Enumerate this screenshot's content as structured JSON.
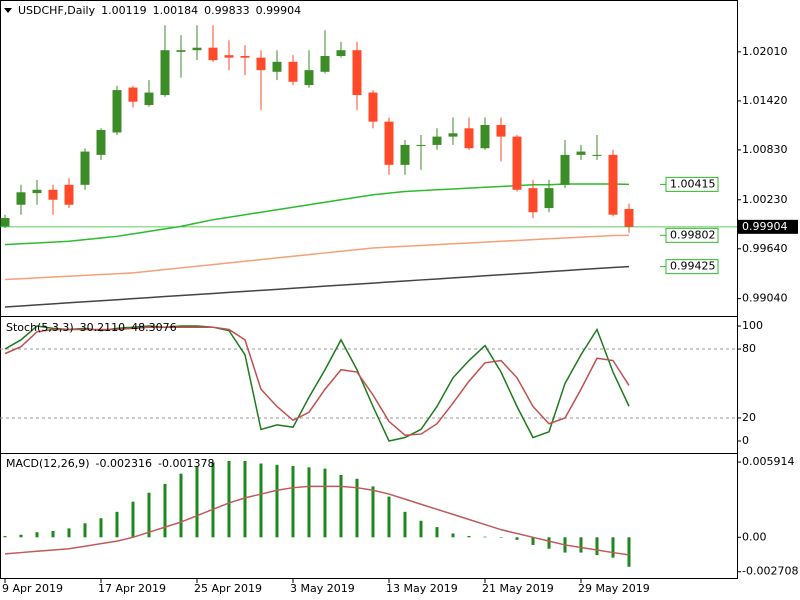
{
  "chart_data": [
    {
      "type": "candlestick",
      "title": "USDCHF,Daily",
      "categories": [
        "9 Apr 2019",
        null,
        null,
        null,
        null,
        null,
        "17 Apr 2019",
        null,
        null,
        null,
        null,
        null,
        "25 Apr 2019",
        null,
        null,
        null,
        null,
        null,
        "3 May 2019",
        null,
        null,
        null,
        null,
        null,
        "13 May 2019",
        null,
        null,
        null,
        null,
        null,
        "21 May 2019",
        null,
        null,
        null,
        null,
        null,
        "29 May 2019",
        null,
        null,
        null
      ],
      "open": [
        0.9991,
        1.0017,
        1.0031,
        1.0035,
        1.0041,
        1.0041,
        1.0077,
        1.0104,
        1.0158,
        1.0137,
        1.0149,
        1.0201,
        1.0203,
        1.0206,
        1.0197,
        1.0196,
        1.0194,
        1.0177,
        1.0189,
        1.0161,
        1.0177,
        1.0196,
        1.0203,
        1.0152,
        1.0117,
        1.0065,
        1.0088,
        1.0089,
        1.0099,
        1.0109,
        1.0085,
        1.0113,
        1.0099,
        1.0037,
        1.0013,
        1.0041,
        1.0077,
        1.0076,
        1.0077,
        1.00119
      ],
      "high": [
        1.0005,
        1.0041,
        1.0047,
        1.0041,
        1.0049,
        1.0085,
        1.0109,
        1.016,
        1.016,
        1.0167,
        1.0233,
        1.0221,
        1.0233,
        1.0233,
        1.0215,
        1.0209,
        1.0203,
        1.0203,
        1.0197,
        1.0203,
        1.0227,
        1.0213,
        1.0213,
        1.0155,
        1.0122,
        1.0095,
        1.0101,
        1.0109,
        1.0122,
        1.0122,
        1.0122,
        1.0122,
        1.0101,
        1.0047,
        1.0047,
        1.0095,
        1.0089,
        1.0101,
        1.0083,
        1.00184
      ],
      "low": [
        0.9989,
        1.0005,
        1.0017,
        1.0005,
        1.0013,
        1.0035,
        1.0071,
        1.0101,
        1.0134,
        1.0135,
        1.0147,
        1.017,
        1.0191,
        1.0189,
        1.0179,
        1.0173,
        1.0131,
        1.0167,
        1.0161,
        1.0158,
        1.0175,
        1.0194,
        1.0131,
        1.0109,
        1.0053,
        1.0053,
        1.0059,
        1.0083,
        1.0089,
        1.0083,
        1.0083,
        1.0069,
        1.0033,
        1.0001,
        1.0008,
        1.0037,
        1.0071,
        1.0071,
        1.0003,
        0.99833
      ],
      "close": [
        1.0001,
        1.0032,
        1.0035,
        1.0023,
        1.0017,
        1.0081,
        1.0107,
        1.0155,
        1.0141,
        1.0152,
        1.0203,
        1.0203,
        1.0206,
        1.0191,
        1.0194,
        1.0194,
        1.0179,
        1.0189,
        1.0165,
        1.0179,
        1.0196,
        1.0203,
        1.0149,
        1.0117,
        1.0065,
        1.0089,
        1.0089,
        1.0099,
        1.0103,
        1.0085,
        1.0113,
        1.0099,
        1.0035,
        1.0008,
        1.0037,
        1.0077,
        1.0081,
        1.0077,
        1.0005,
        0.99904
      ],
      "up_color": "#3c8c28",
      "down_color": "#ff4a2a",
      "series": [
        {
          "color": "#2dbb2d",
          "values": [
            0.9969,
            0.997,
            0.9971,
            0.9972,
            0.9973,
            0.9975,
            0.9977,
            0.9979,
            0.9982,
            0.9985,
            0.9988,
            0.9991,
            0.9995,
            0.9999,
            1.0002,
            1.0005,
            1.0008,
            1.0011,
            1.0014,
            1.0017,
            1.002,
            1.0023,
            1.0026,
            1.0029,
            1.0031,
            1.0033,
            1.0034,
            1.0035,
            1.0036,
            1.0037,
            1.0038,
            1.0039,
            1.004,
            1.0041,
            1.0041,
            1.0042,
            1.0042,
            1.0042,
            1.0042,
            1.00415
          ]
        },
        {
          "color": "#f4a07a",
          "values": [
            0.9927,
            0.9928,
            0.9929,
            0.993,
            0.9931,
            0.9932,
            0.9933,
            0.9934,
            0.9935,
            0.9937,
            0.9939,
            0.9941,
            0.9943,
            0.9945,
            0.9947,
            0.9949,
            0.9951,
            0.9953,
            0.9955,
            0.9957,
            0.9959,
            0.9961,
            0.9963,
            0.9965,
            0.9966,
            0.9967,
            0.9968,
            0.9969,
            0.997,
            0.9971,
            0.9972,
            0.9973,
            0.9974,
            0.9975,
            0.9976,
            0.9977,
            0.9978,
            0.9979,
            0.998,
            0.99802
          ]
        },
        {
          "color": "#444444",
          "values": [
            0.9894,
            0.98952,
            0.98965,
            0.98977,
            0.9899,
            0.99002,
            0.99015,
            0.99027,
            0.9904,
            0.99052,
            0.99065,
            0.99077,
            0.9909,
            0.99102,
            0.99115,
            0.99127,
            0.9914,
            0.99152,
            0.99165,
            0.99177,
            0.9919,
            0.99202,
            0.99215,
            0.99227,
            0.9924,
            0.99252,
            0.99265,
            0.99277,
            0.9929,
            0.99302,
            0.99315,
            0.99327,
            0.9934,
            0.99352,
            0.99365,
            0.99377,
            0.9939,
            0.99402,
            0.99415,
            0.99425
          ]
        }
      ],
      "ylim": [
        0.98831,
        1.0261
      ],
      "yticks": [
        {
          "value": 1.0201,
          "label": "1.02010"
        },
        {
          "value": 1.0142,
          "label": "1.01420"
        },
        {
          "value": 1.0083,
          "label": "1.00830"
        },
        {
          "value": 1.0023,
          "label": "1.00230"
        },
        {
          "value": 0.9964,
          "label": "0.99640"
        },
        {
          "value": 0.9904,
          "label": "0.99040"
        }
      ]
    },
    {
      "type": "line",
      "title": "Stoch(5,3,3)",
      "series": [
        {
          "color": "#1e7a1e",
          "values": [
            80,
            88,
            100,
            98,
            97,
            98,
            96,
            98,
            99,
            100,
            99,
            100,
            100,
            99,
            96,
            75,
            10,
            14,
            12,
            38,
            62,
            88,
            62,
            30,
            0,
            3,
            10,
            30,
            55,
            70,
            83,
            60,
            30,
            3,
            8,
            50,
            75,
            97,
            60,
            30.211
          ],
          "value_labels": [
            null,
            null,
            null,
            null,
            null,
            null,
            null,
            null,
            null,
            null,
            null,
            null,
            null,
            null,
            null,
            null,
            null,
            null,
            null,
            null,
            null,
            null,
            null,
            null,
            null,
            null,
            null,
            null,
            null,
            null,
            null,
            null,
            null,
            null,
            null,
            null,
            null,
            null,
            null,
            "30.2110"
          ]
        },
        {
          "color": "#c05050",
          "values": [
            76,
            82,
            95,
            97,
            97,
            97,
            97,
            97,
            98,
            99,
            99,
            99,
            99,
            99,
            97,
            88,
            45,
            30,
            18,
            25,
            45,
            62,
            60,
            40,
            17,
            5,
            6,
            15,
            33,
            52,
            68,
            70,
            55,
            30,
            15,
            20,
            45,
            72,
            70,
            48.3076
          ]
        }
      ],
      "levels": [
        80,
        20
      ],
      "ylim": [
        -9.6,
        107
      ],
      "yticks": [
        100,
        80,
        20,
        0
      ]
    },
    {
      "type": "bar",
      "title": "MACD(12,26,9)",
      "series": [
        {
          "type": "bar",
          "color": "#1a8a1a",
          "values": [
            0.0001,
            0.0002,
            0.0004,
            0.0005,
            0.0007,
            0.0011,
            0.0015,
            0.002,
            0.0028,
            0.0035,
            0.0042,
            0.005,
            0.0056,
            0.0059,
            0.006,
            0.006,
            0.0058,
            0.0057,
            0.0056,
            0.0055,
            0.0054,
            0.0049,
            0.0046,
            0.004,
            0.0032,
            0.002,
            0.0013,
            0.0008,
            0.0003,
            0.0001,
            5e-05,
            2e-05,
            -0.0002,
            -0.0006,
            -0.0009,
            -0.0012,
            -0.0012,
            -0.0014,
            -0.0016,
            -0.002316
          ]
        },
        {
          "type": "line",
          "color": "#c05a5a",
          "values": [
            -0.0013,
            -0.0012,
            -0.0011,
            -0.001,
            -0.0009,
            -0.0007,
            -0.0005,
            -0.0003,
            0,
            0.0004,
            0.0008,
            0.0012,
            0.0017,
            0.0022,
            0.0027,
            0.0031,
            0.0034,
            0.0037,
            0.0039,
            0.004,
            0.004,
            0.004,
            0.0039,
            0.0037,
            0.0034,
            0.003,
            0.0026,
            0.0022,
            0.0018,
            0.0014,
            0.001,
            0.0006,
            0.0003,
            0,
            -0.0003,
            -0.0006,
            -0.0008,
            -0.001,
            -0.0012,
            -0.001378
          ]
        }
      ],
      "ylim": [
        -0.0032,
        0.00647
      ],
      "yticks": [
        0.005914,
        {
          "value": 0,
          "label": "0.00"
        },
        -0.002708
      ]
    }
  ]
}
